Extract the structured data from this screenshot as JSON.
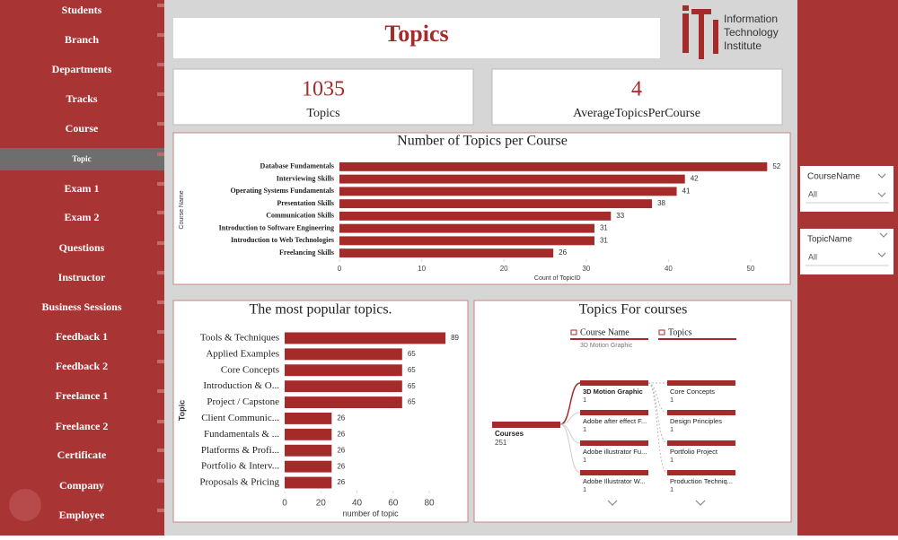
{
  "nav": {
    "items": [
      "Students",
      "Branch",
      "Departments",
      "Tracks",
      "Course",
      "Topic",
      "Exam 1",
      "Exam 2",
      "Questions",
      "Instructor",
      "Business Sessions",
      "Feedback 1",
      "Feedback 2",
      "Freelance 1",
      "Freelance 2",
      "Certificate",
      "Company",
      "Employee"
    ],
    "active": "Topic"
  },
  "header": {
    "title": "Topics"
  },
  "logo": {
    "lines": [
      "Information",
      "Technology",
      "Institute"
    ]
  },
  "cards": [
    {
      "value": 1035,
      "label": "Topics"
    },
    {
      "value": 4,
      "label": "AverageTopicsPerCourse"
    }
  ],
  "slicers": [
    {
      "label": "CourseName",
      "value": "All"
    },
    {
      "label": "TopicName",
      "value": "All"
    }
  ],
  "chart_data": [
    {
      "type": "bar",
      "orientation": "horizontal",
      "title": "Number of Topics per Course",
      "x_label": "Count of TopicID",
      "y_label": "Course Name",
      "categories": [
        "Database Fundamentals",
        "Interviewing Skills",
        "Operating Systems Fundamentals",
        "Presentation Skills",
        "Communication Skills",
        "Introduction to Software Engineering",
        "Introduction to Web Technologies",
        "Freelancing Skills"
      ],
      "values": [
        52,
        42,
        41,
        38,
        33,
        31,
        31,
        26
      ],
      "color": "#a52a2a",
      "show_values": true,
      "xlim": [
        0,
        53
      ],
      "xticks": [
        0,
        10,
        20,
        30,
        40,
        50
      ]
    },
    {
      "type": "bar",
      "orientation": "horizontal",
      "title": "The most popular topics.",
      "x_label": "number of topic",
      "y_label": "Topic",
      "categories": [
        "Tools & Techniques",
        "Applied Examples",
        "Core Concepts",
        "Introduction & O...",
        "Project / Capstone",
        "Client Communic...",
        "Fundamentals & ...",
        "Platforms & Profi...",
        "Portfolio & Interv...",
        "Proposals & Pricing"
      ],
      "values": [
        89,
        65,
        65,
        65,
        65,
        26,
        26,
        26,
        26,
        26
      ],
      "color": "#a52a2a",
      "show_values": true,
      "xlim": [
        0,
        95
      ],
      "xticks": [
        0,
        20,
        40,
        60,
        80
      ]
    }
  ],
  "decomposition_tree": {
    "title": "Topics For courses",
    "levels": [
      {
        "label": "Course Name",
        "filter": "3D Motion Graphic"
      },
      {
        "label": "Topics"
      }
    ],
    "root": {
      "label": "Courses",
      "value": 251
    },
    "level1": [
      {
        "label": "3D Motion Graphic",
        "value": 1
      },
      {
        "label": "Adobe after effect F...",
        "value": 1
      },
      {
        "label": "Adobe illustrator Fu...",
        "value": 1
      },
      {
        "label": "Adobe Illustrator W...",
        "value": 1
      }
    ],
    "level2": [
      {
        "label": "Core Concepts",
        "value": 1
      },
      {
        "label": "Design Principles",
        "value": 1
      },
      {
        "label": "Portfolio Project",
        "value": 1
      },
      {
        "label": "Production Techniq...",
        "value": 1
      }
    ]
  }
}
